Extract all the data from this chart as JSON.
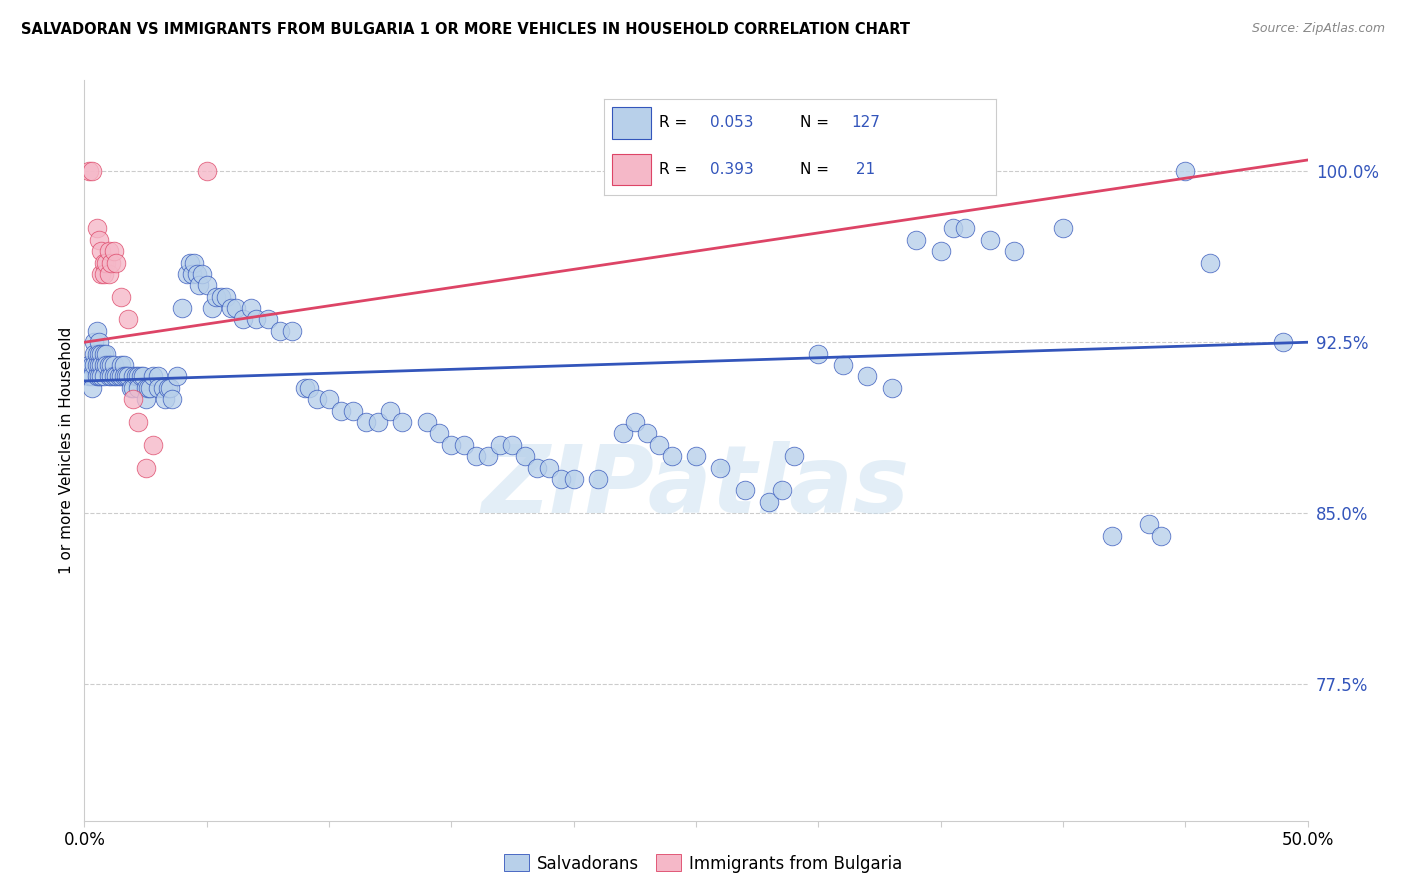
{
  "title": "SALVADORAN VS IMMIGRANTS FROM BULGARIA 1 OR MORE VEHICLES IN HOUSEHOLD CORRELATION CHART",
  "source": "Source: ZipAtlas.com",
  "ylabel": "1 or more Vehicles in Household",
  "ytick_labels": [
    "100.0%",
    "92.5%",
    "85.0%",
    "77.5%"
  ],
  "ytick_values": [
    1.0,
    0.925,
    0.85,
    0.775
  ],
  "blue_color": "#b8d0ea",
  "pink_color": "#f5b8c8",
  "blue_line_color": "#3355bb",
  "pink_line_color": "#dd4466",
  "x_min": 0.0,
  "x_max": 0.5,
  "y_min": 0.715,
  "y_max": 1.04,
  "salvadoran_points": [
    [
      0.002,
      0.915
    ],
    [
      0.002,
      0.91
    ],
    [
      0.003,
      0.915
    ],
    [
      0.003,
      0.91
    ],
    [
      0.003,
      0.905
    ],
    [
      0.004,
      0.925
    ],
    [
      0.004,
      0.92
    ],
    [
      0.004,
      0.915
    ],
    [
      0.005,
      0.93
    ],
    [
      0.005,
      0.92
    ],
    [
      0.005,
      0.915
    ],
    [
      0.005,
      0.91
    ],
    [
      0.006,
      0.925
    ],
    [
      0.006,
      0.92
    ],
    [
      0.006,
      0.915
    ],
    [
      0.006,
      0.91
    ],
    [
      0.007,
      0.92
    ],
    [
      0.007,
      0.915
    ],
    [
      0.007,
      0.91
    ],
    [
      0.008,
      0.92
    ],
    [
      0.008,
      0.915
    ],
    [
      0.008,
      0.91
    ],
    [
      0.009,
      0.92
    ],
    [
      0.009,
      0.915
    ],
    [
      0.01,
      0.915
    ],
    [
      0.01,
      0.91
    ],
    [
      0.011,
      0.915
    ],
    [
      0.011,
      0.91
    ],
    [
      0.012,
      0.915
    ],
    [
      0.012,
      0.91
    ],
    [
      0.013,
      0.91
    ],
    [
      0.014,
      0.91
    ],
    [
      0.015,
      0.915
    ],
    [
      0.015,
      0.91
    ],
    [
      0.016,
      0.915
    ],
    [
      0.016,
      0.91
    ],
    [
      0.017,
      0.91
    ],
    [
      0.018,
      0.91
    ],
    [
      0.019,
      0.905
    ],
    [
      0.02,
      0.91
    ],
    [
      0.02,
      0.905
    ],
    [
      0.021,
      0.91
    ],
    [
      0.022,
      0.91
    ],
    [
      0.022,
      0.905
    ],
    [
      0.023,
      0.91
    ],
    [
      0.024,
      0.91
    ],
    [
      0.025,
      0.905
    ],
    [
      0.025,
      0.9
    ],
    [
      0.026,
      0.905
    ],
    [
      0.027,
      0.905
    ],
    [
      0.028,
      0.91
    ],
    [
      0.03,
      0.91
    ],
    [
      0.03,
      0.905
    ],
    [
      0.032,
      0.905
    ],
    [
      0.033,
      0.9
    ],
    [
      0.034,
      0.905
    ],
    [
      0.035,
      0.905
    ],
    [
      0.036,
      0.9
    ],
    [
      0.038,
      0.91
    ],
    [
      0.04,
      0.94
    ],
    [
      0.042,
      0.955
    ],
    [
      0.043,
      0.96
    ],
    [
      0.044,
      0.955
    ],
    [
      0.045,
      0.96
    ],
    [
      0.046,
      0.955
    ],
    [
      0.047,
      0.95
    ],
    [
      0.048,
      0.955
    ],
    [
      0.05,
      0.95
    ],
    [
      0.052,
      0.94
    ],
    [
      0.054,
      0.945
    ],
    [
      0.056,
      0.945
    ],
    [
      0.058,
      0.945
    ],
    [
      0.06,
      0.94
    ],
    [
      0.062,
      0.94
    ],
    [
      0.065,
      0.935
    ],
    [
      0.068,
      0.94
    ],
    [
      0.07,
      0.935
    ],
    [
      0.075,
      0.935
    ],
    [
      0.08,
      0.93
    ],
    [
      0.085,
      0.93
    ],
    [
      0.09,
      0.905
    ],
    [
      0.092,
      0.905
    ],
    [
      0.095,
      0.9
    ],
    [
      0.1,
      0.9
    ],
    [
      0.105,
      0.895
    ],
    [
      0.11,
      0.895
    ],
    [
      0.115,
      0.89
    ],
    [
      0.12,
      0.89
    ],
    [
      0.125,
      0.895
    ],
    [
      0.13,
      0.89
    ],
    [
      0.14,
      0.89
    ],
    [
      0.145,
      0.885
    ],
    [
      0.15,
      0.88
    ],
    [
      0.155,
      0.88
    ],
    [
      0.16,
      0.875
    ],
    [
      0.165,
      0.875
    ],
    [
      0.17,
      0.88
    ],
    [
      0.175,
      0.88
    ],
    [
      0.18,
      0.875
    ],
    [
      0.185,
      0.87
    ],
    [
      0.19,
      0.87
    ],
    [
      0.195,
      0.865
    ],
    [
      0.2,
      0.865
    ],
    [
      0.21,
      0.865
    ],
    [
      0.22,
      0.885
    ],
    [
      0.225,
      0.89
    ],
    [
      0.23,
      0.885
    ],
    [
      0.235,
      0.88
    ],
    [
      0.24,
      0.875
    ],
    [
      0.25,
      0.875
    ],
    [
      0.26,
      0.87
    ],
    [
      0.27,
      0.86
    ],
    [
      0.28,
      0.855
    ],
    [
      0.285,
      0.86
    ],
    [
      0.29,
      0.875
    ],
    [
      0.3,
      0.92
    ],
    [
      0.31,
      0.915
    ],
    [
      0.32,
      0.91
    ],
    [
      0.33,
      0.905
    ],
    [
      0.34,
      0.97
    ],
    [
      0.35,
      0.965
    ],
    [
      0.355,
      0.975
    ],
    [
      0.36,
      0.975
    ],
    [
      0.37,
      0.97
    ],
    [
      0.38,
      0.965
    ],
    [
      0.4,
      0.975
    ],
    [
      0.42,
      0.84
    ],
    [
      0.435,
      0.845
    ],
    [
      0.44,
      0.84
    ],
    [
      0.45,
      1.0
    ],
    [
      0.46,
      0.96
    ],
    [
      0.49,
      0.925
    ]
  ],
  "bulgaria_points": [
    [
      0.002,
      1.0
    ],
    [
      0.003,
      1.0
    ],
    [
      0.005,
      0.975
    ],
    [
      0.006,
      0.97
    ],
    [
      0.007,
      0.965
    ],
    [
      0.007,
      0.955
    ],
    [
      0.008,
      0.96
    ],
    [
      0.008,
      0.955
    ],
    [
      0.009,
      0.96
    ],
    [
      0.01,
      0.965
    ],
    [
      0.01,
      0.955
    ],
    [
      0.011,
      0.96
    ],
    [
      0.012,
      0.965
    ],
    [
      0.013,
      0.96
    ],
    [
      0.015,
      0.945
    ],
    [
      0.018,
      0.935
    ],
    [
      0.02,
      0.9
    ],
    [
      0.022,
      0.89
    ],
    [
      0.025,
      0.87
    ],
    [
      0.028,
      0.88
    ],
    [
      0.05,
      1.0
    ]
  ],
  "salvadoran_line": {
    "x0": 0.0,
    "y0": 0.908,
    "x1": 0.5,
    "y1": 0.925
  },
  "bulgaria_line": {
    "x0": 0.0,
    "y0": 0.925,
    "x1": 0.5,
    "y1": 1.005
  },
  "watermark": "ZIPatlas",
  "background_color": "#ffffff"
}
